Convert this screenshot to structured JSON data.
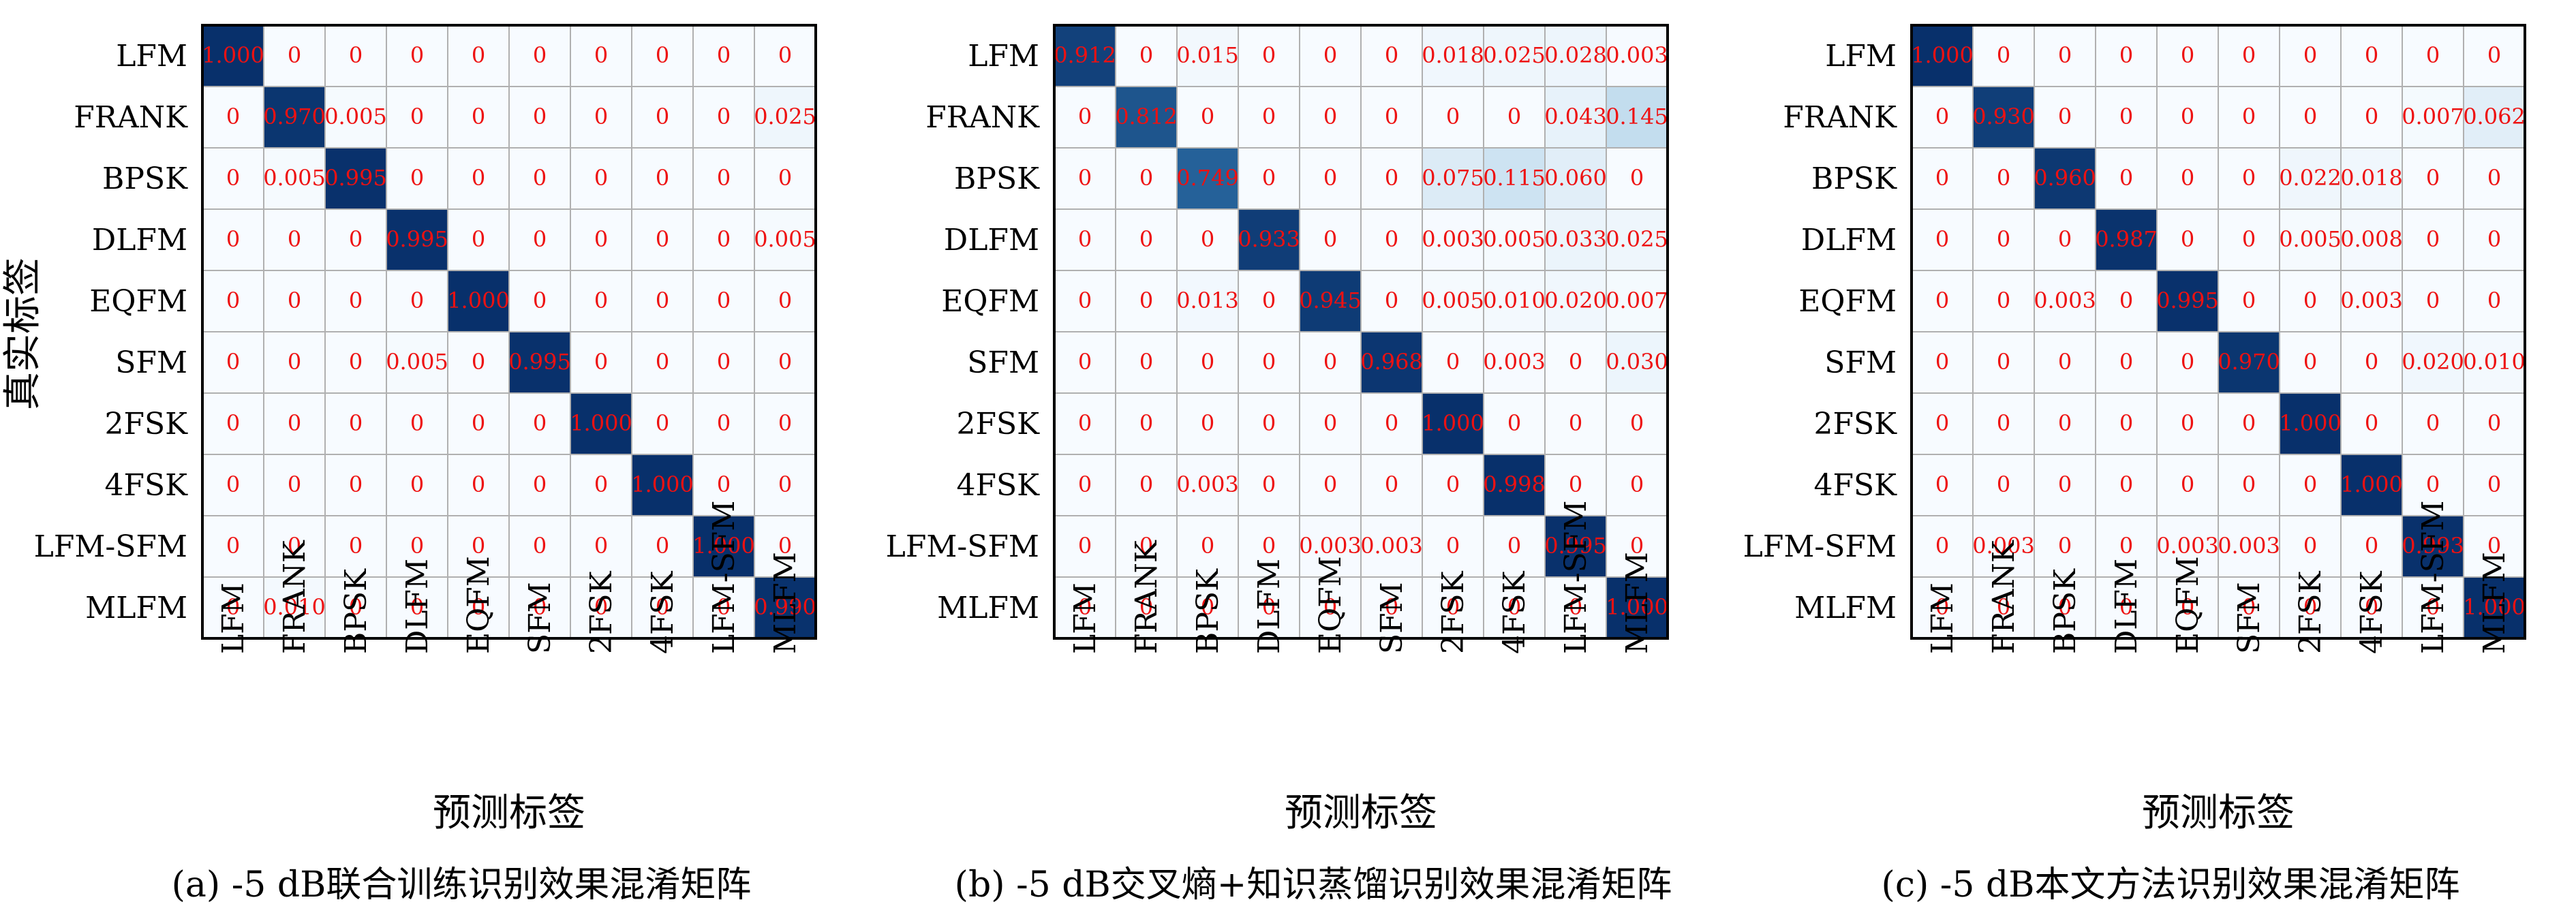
{
  "labels": [
    "LFM",
    "FRANK",
    "BPSK",
    "DLFM",
    "EQFM",
    "SFM",
    "2FSK",
    "4FSK",
    "LFM-SFM",
    "MLFM"
  ],
  "y_axis_title": "真实标签",
  "x_axis_title": "预测标签",
  "colors": {
    "cell_text": "#ee1111",
    "max": "#08306b",
    "min": "#f7fbff",
    "grid": "#b0b0b0",
    "frame": "#000000"
  },
  "chart_data": [
    {
      "type": "heatmap",
      "caption": "(a) -5 dB联合训练识别效果混淆矩阵",
      "ylabel": "真实标签",
      "xlabel": "预测标签",
      "rows": [
        "LFM",
        "FRANK",
        "BPSK",
        "DLFM",
        "EQFM",
        "SFM",
        "2FSK",
        "4FSK",
        "LFM-SFM",
        "MLFM"
      ],
      "cols": [
        "LFM",
        "FRANK",
        "BPSK",
        "DLFM",
        "EQFM",
        "SFM",
        "2FSK",
        "4FSK",
        "LFM-SFM",
        "MLFM"
      ],
      "values": [
        [
          1.0,
          0,
          0,
          0,
          0,
          0,
          0,
          0,
          0,
          0
        ],
        [
          0,
          0.97,
          0.005,
          0,
          0,
          0,
          0,
          0,
          0,
          0.025
        ],
        [
          0,
          0.005,
          0.995,
          0,
          0,
          0,
          0,
          0,
          0,
          0
        ],
        [
          0,
          0,
          0,
          0.995,
          0,
          0,
          0,
          0,
          0,
          0.005
        ],
        [
          0,
          0,
          0,
          0,
          1.0,
          0,
          0,
          0,
          0,
          0
        ],
        [
          0,
          0,
          0,
          0.005,
          0,
          0.995,
          0,
          0,
          0,
          0
        ],
        [
          0,
          0,
          0,
          0,
          0,
          0,
          1.0,
          0,
          0,
          0
        ],
        [
          0,
          0,
          0,
          0,
          0,
          0,
          0,
          1.0,
          0,
          0
        ],
        [
          0,
          0,
          0,
          0,
          0,
          0,
          0,
          0,
          1.0,
          0
        ],
        [
          0,
          0.01,
          0,
          0,
          0,
          0,
          0,
          0,
          0,
          0.99
        ]
      ],
      "display": [
        [
          "1.000",
          "0",
          "0",
          "0",
          "0",
          "0",
          "0",
          "0",
          "0",
          "0"
        ],
        [
          "0",
          "0.970",
          "0.005",
          "0",
          "0",
          "0",
          "0",
          "0",
          "0",
          "0.025"
        ],
        [
          "0",
          "0.005",
          "0.995",
          "0",
          "0",
          "0",
          "0",
          "0",
          "0",
          "0"
        ],
        [
          "0",
          "0",
          "0",
          "0.995",
          "0",
          "0",
          "0",
          "0",
          "0",
          "0.005"
        ],
        [
          "0",
          "0",
          "0",
          "0",
          "1.000",
          "0",
          "0",
          "0",
          "0",
          "0"
        ],
        [
          "0",
          "0",
          "0",
          "0.005",
          "0",
          "0.995",
          "0",
          "0",
          "0",
          "0"
        ],
        [
          "0",
          "0",
          "0",
          "0",
          "0",
          "0",
          "1.000",
          "0",
          "0",
          "0"
        ],
        [
          "0",
          "0",
          "0",
          "0",
          "0",
          "0",
          "0",
          "1.000",
          "0",
          "0"
        ],
        [
          "0",
          "0",
          "0",
          "0",
          "0",
          "0",
          "0",
          "0",
          "1.000",
          "0"
        ],
        [
          "0",
          "0.010",
          "0",
          "0",
          "0",
          "0",
          "0",
          "0",
          "0",
          "0.990"
        ]
      ]
    },
    {
      "type": "heatmap",
      "caption": "(b) -5 dB交叉熵+知识蒸馏识别效果混淆矩阵",
      "ylabel": "",
      "xlabel": "预测标签",
      "rows": [
        "LFM",
        "FRANK",
        "BPSK",
        "DLFM",
        "EQFM",
        "SFM",
        "2FSK",
        "4FSK",
        "LFM-SFM",
        "MLFM"
      ],
      "cols": [
        "LFM",
        "FRANK",
        "BPSK",
        "DLFM",
        "EQFM",
        "SFM",
        "2FSK",
        "4FSK",
        "LFM-SFM",
        "MLFM"
      ],
      "values": [
        [
          0.912,
          0,
          0.015,
          0,
          0,
          0,
          0.018,
          0.025,
          0.028,
          0.003
        ],
        [
          0,
          0.812,
          0,
          0,
          0,
          0,
          0,
          0,
          0.043,
          0.145
        ],
        [
          0,
          0,
          0.749,
          0,
          0,
          0,
          0.075,
          0.115,
          0.06,
          0
        ],
        [
          0,
          0,
          0,
          0.933,
          0,
          0,
          0.003,
          0.005,
          0.033,
          0.025
        ],
        [
          0,
          0,
          0.013,
          0,
          0.945,
          0,
          0.005,
          0.01,
          0.02,
          0.007
        ],
        [
          0,
          0,
          0,
          0,
          0,
          0.968,
          0,
          0.003,
          0,
          0.03
        ],
        [
          0,
          0,
          0,
          0,
          0,
          0,
          1.0,
          0,
          0,
          0
        ],
        [
          0,
          0,
          0.003,
          0,
          0,
          0,
          0,
          0.998,
          0,
          0
        ],
        [
          0,
          0,
          0,
          0,
          0.003,
          0.003,
          0,
          0,
          0.995,
          0
        ],
        [
          0,
          0,
          0,
          0,
          0,
          0,
          0,
          0,
          0,
          1.0
        ]
      ],
      "display": [
        [
          "0.912",
          "0",
          "0.015",
          "0",
          "0",
          "0",
          "0.018",
          "0.025",
          "0.028",
          "0.003"
        ],
        [
          "0",
          "0.812",
          "0",
          "0",
          "0",
          "0",
          "0",
          "0",
          "0.043",
          "0.145"
        ],
        [
          "0",
          "0",
          "0.749",
          "0",
          "0",
          "0",
          "0.075",
          "0.115",
          "0.060",
          "0"
        ],
        [
          "0",
          "0",
          "0",
          "0.933",
          "0",
          "0",
          "0.003",
          "0.005",
          "0.033",
          "0.025"
        ],
        [
          "0",
          "0",
          "0.013",
          "0",
          "0.945",
          "0",
          "0.005",
          "0.010",
          "0.020",
          "0.007"
        ],
        [
          "0",
          "0",
          "0",
          "0",
          "0",
          "0.968",
          "0",
          "0.003",
          "0",
          "0.030"
        ],
        [
          "0",
          "0",
          "0",
          "0",
          "0",
          "0",
          "1.000",
          "0",
          "0",
          "0"
        ],
        [
          "0",
          "0",
          "0.003",
          "0",
          "0",
          "0",
          "0",
          "0.998",
          "0",
          "0"
        ],
        [
          "0",
          "0",
          "0",
          "0",
          "0.003",
          "0.003",
          "0",
          "0",
          "0.995",
          "0"
        ],
        [
          "0",
          "0",
          "0",
          "0",
          "0",
          "0",
          "0",
          "0",
          "0",
          "1.000"
        ]
      ]
    },
    {
      "type": "heatmap",
      "caption": "(c) -5 dB本文方法识别效果混淆矩阵",
      "ylabel": "",
      "xlabel": "预测标签",
      "rows": [
        "LFM",
        "FRANK",
        "BPSK",
        "DLFM",
        "EQFM",
        "SFM",
        "2FSK",
        "4FSK",
        "LFM-SFM",
        "MLFM"
      ],
      "cols": [
        "LFM",
        "FRANK",
        "BPSK",
        "DLFM",
        "EQFM",
        "SFM",
        "2FSK",
        "4FSK",
        "LFM-SFM",
        "MLFM"
      ],
      "values": [
        [
          1.0,
          0,
          0,
          0,
          0,
          0,
          0,
          0,
          0,
          0
        ],
        [
          0,
          0.93,
          0,
          0,
          0,
          0,
          0,
          0,
          0.007,
          0.062
        ],
        [
          0,
          0,
          0.96,
          0,
          0,
          0,
          0.022,
          0.018,
          0,
          0
        ],
        [
          0,
          0,
          0,
          0.987,
          0,
          0,
          0.005,
          0.008,
          0,
          0
        ],
        [
          0,
          0,
          0.003,
          0,
          0.995,
          0,
          0,
          0.003,
          0,
          0
        ],
        [
          0,
          0,
          0,
          0,
          0,
          0.97,
          0,
          0,
          0.02,
          0.01
        ],
        [
          0,
          0,
          0,
          0,
          0,
          0,
          1.0,
          0,
          0,
          0
        ],
        [
          0,
          0,
          0,
          0,
          0,
          0,
          0,
          1.0,
          0,
          0
        ],
        [
          0,
          0.003,
          0,
          0,
          0.003,
          0.003,
          0,
          0,
          0.993,
          0
        ],
        [
          0,
          0,
          0,
          0,
          0,
          0,
          0,
          0,
          0,
          1.0
        ]
      ],
      "display": [
        [
          "1.000",
          "0",
          "0",
          "0",
          "0",
          "0",
          "0",
          "0",
          "0",
          "0"
        ],
        [
          "0",
          "0.930",
          "0",
          "0",
          "0",
          "0",
          "0",
          "0",
          "0.007",
          "0.062"
        ],
        [
          "0",
          "0",
          "0.960",
          "0",
          "0",
          "0",
          "0.022",
          "0.018",
          "0",
          "0"
        ],
        [
          "0",
          "0",
          "0",
          "0.987",
          "0",
          "0",
          "0.005",
          "0.008",
          "0",
          "0"
        ],
        [
          "0",
          "0",
          "0.003",
          "0",
          "0.995",
          "0",
          "0",
          "0.003",
          "0",
          "0"
        ],
        [
          "0",
          "0",
          "0",
          "0",
          "0",
          "0.970",
          "0",
          "0",
          "0.020",
          "0.010"
        ],
        [
          "0",
          "0",
          "0",
          "0",
          "0",
          "0",
          "1.000",
          "0",
          "0",
          "0"
        ],
        [
          "0",
          "0",
          "0",
          "0",
          "0",
          "0",
          "0",
          "1.000",
          "0",
          "0"
        ],
        [
          "0",
          "0.003",
          "0",
          "0",
          "0.003",
          "0.003",
          "0",
          "0",
          "0.993",
          "0"
        ],
        [
          "0",
          "0",
          "0",
          "0",
          "0",
          "0",
          "0",
          "0",
          "0",
          "1.000"
        ]
      ]
    }
  ]
}
